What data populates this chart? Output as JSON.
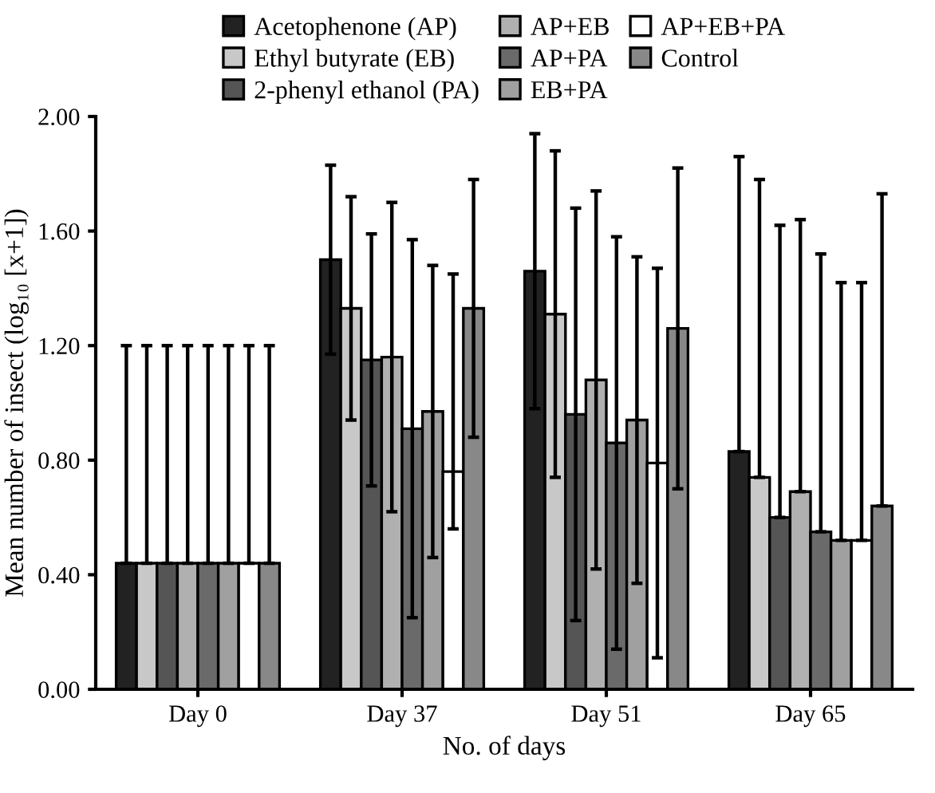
{
  "chart_data": {
    "type": "bar",
    "xlabel": "No. of days",
    "ylabel": "Mean number of insect (log₁₀ [x+1])",
    "categories": [
      "Day 0",
      "Day 37",
      "Day 51",
      "Day 65"
    ],
    "series": [
      {
        "name": "Acetophenone (AP)",
        "color": "#222222",
        "values": [
          0.44,
          1.5,
          1.46,
          0.83
        ],
        "errors": [
          [
            0.44,
            1.2
          ],
          0.33,
          0.48,
          [
            0.83,
            1.86
          ]
        ]
      },
      {
        "name": "Ethyl butyrate (EB)",
        "color": "#c8c8c8",
        "values": [
          0.44,
          1.33,
          1.31,
          0.74
        ],
        "errors": [
          [
            0.44,
            1.2
          ],
          0.39,
          0.57,
          [
            0.74,
            1.78
          ]
        ]
      },
      {
        "name": "2-phenyl ethanol (PA)",
        "color": "#555555",
        "values": [
          0.44,
          1.15,
          0.96,
          0.6
        ],
        "errors": [
          [
            0.44,
            1.2
          ],
          0.44,
          0.72,
          [
            0.6,
            1.62
          ]
        ]
      },
      {
        "name": "AP+EB",
        "color": "#b0b0b0",
        "values": [
          0.44,
          1.16,
          1.08,
          0.69
        ],
        "errors": [
          [
            0.44,
            1.2
          ],
          0.54,
          0.66,
          [
            0.69,
            1.64
          ]
        ]
      },
      {
        "name": "AP+PA",
        "color": "#6a6a6a",
        "values": [
          0.44,
          0.91,
          0.86,
          0.55
        ],
        "errors": [
          [
            0.44,
            1.2
          ],
          0.66,
          0.72,
          [
            0.55,
            1.52
          ]
        ]
      },
      {
        "name": "EB+PA",
        "color": "#a0a0a0",
        "values": [
          0.44,
          0.97,
          0.94,
          0.52
        ],
        "errors": [
          [
            0.44,
            1.2
          ],
          0.51,
          0.57,
          [
            0.52,
            1.42
          ]
        ]
      },
      {
        "name": "AP+EB+PA",
        "color": "#ffffff",
        "values": [
          0.44,
          0.76,
          0.79,
          0.52
        ],
        "errors": [
          [
            0.44,
            1.2
          ],
          [
            0.56,
            1.45
          ],
          0.68,
          [
            0.52,
            1.42
          ]
        ]
      },
      {
        "name": "Control",
        "color": "#888888",
        "values": [
          0.44,
          1.33,
          1.26,
          0.64
        ],
        "errors": [
          [
            0.44,
            1.2
          ],
          0.45,
          0.56,
          [
            0.64,
            1.73
          ]
        ]
      }
    ],
    "ylim": [
      0,
      2.0
    ],
    "yticks": [
      {
        "value": 0,
        "label": "0.00"
      },
      {
        "value": 0.4,
        "label": "0.40"
      },
      {
        "value": 0.8,
        "label": "0.80"
      },
      {
        "value": 1.2,
        "label": "1.20"
      },
      {
        "value": 1.6,
        "label": "1.60"
      },
      {
        "value": 2.0,
        "label": "2.00"
      }
    ],
    "grid": false,
    "legend": "top"
  }
}
